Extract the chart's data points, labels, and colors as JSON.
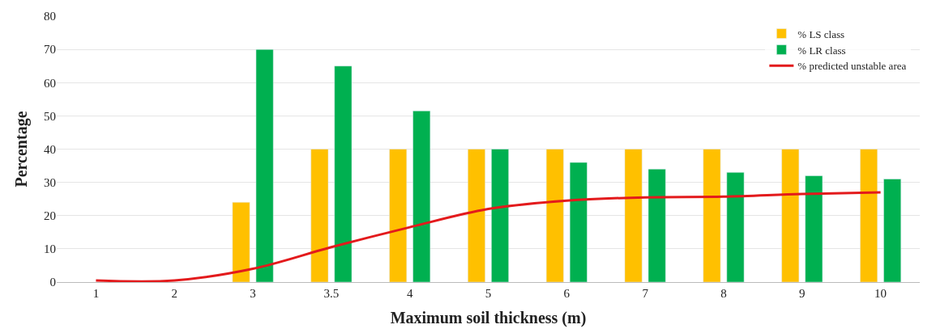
{
  "chart_data": {
    "type": "bar",
    "xlabel": "Maximum soil thickness (m)",
    "ylabel": "Percentage",
    "categories": [
      "1",
      "2",
      "3",
      "3.5",
      "4",
      "5",
      "6",
      "7",
      "8",
      "9",
      "10"
    ],
    "series": [
      {
        "name": "% LS class",
        "color": "#ffc000",
        "values": [
          null,
          null,
          24,
          40,
          40,
          40,
          40,
          40,
          40,
          40,
          40
        ]
      },
      {
        "name": "% LR class",
        "color": "#00b050",
        "values": [
          null,
          null,
          70,
          65,
          51.5,
          40,
          36,
          34,
          33,
          32,
          31
        ]
      },
      {
        "name": "% predicted unstable area",
        "type": "line",
        "color": "#e31a1c",
        "values": [
          0.5,
          0.5,
          4,
          10.5,
          16.5,
          22,
          24.5,
          25.5,
          25.7,
          26.5,
          27
        ]
      }
    ],
    "ylim": [
      0,
      80
    ],
    "yticks": [
      0,
      10,
      20,
      30,
      40,
      50,
      60,
      70,
      80
    ],
    "grid": "y",
    "legend": "top right"
  }
}
